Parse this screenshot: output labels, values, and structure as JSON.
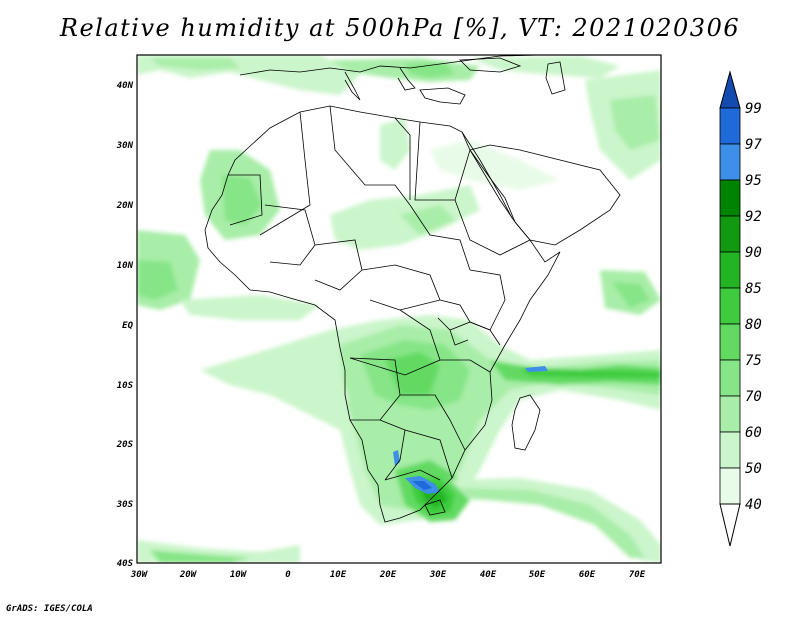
{
  "title": "Relative humidity at 500hPa [%], VT: 2021020306",
  "credit": "GrADS: IGES/COLA",
  "map": {
    "lon_ticks": [
      "30W",
      "20W",
      "10W",
      "0",
      "10E",
      "20E",
      "30E",
      "40E",
      "50E",
      "60E",
      "70E"
    ],
    "lat_ticks": [
      "40N",
      "30N",
      "20N",
      "10N",
      "EQ",
      "10S",
      "20S",
      "30S",
      "40S"
    ]
  },
  "colorbar": {
    "levels": [
      "40",
      "50",
      "60",
      "70",
      "75",
      "80",
      "85",
      "90",
      "92",
      "95",
      "97",
      "99"
    ],
    "colors": {
      "lt40": "#ffffff",
      "40_50": "#e8fbe8",
      "50_60": "#cbf5cb",
      "60_70": "#a8eda8",
      "70_75": "#86e586",
      "75_80": "#62da62",
      "80_85": "#3ecc3e",
      "85_90": "#22b422",
      "90_92": "#119911",
      "92_95": "#008400",
      "95_97": "#3d8fe8",
      "97_99": "#1e6ad8",
      "gt99": "#134bb0"
    }
  }
}
